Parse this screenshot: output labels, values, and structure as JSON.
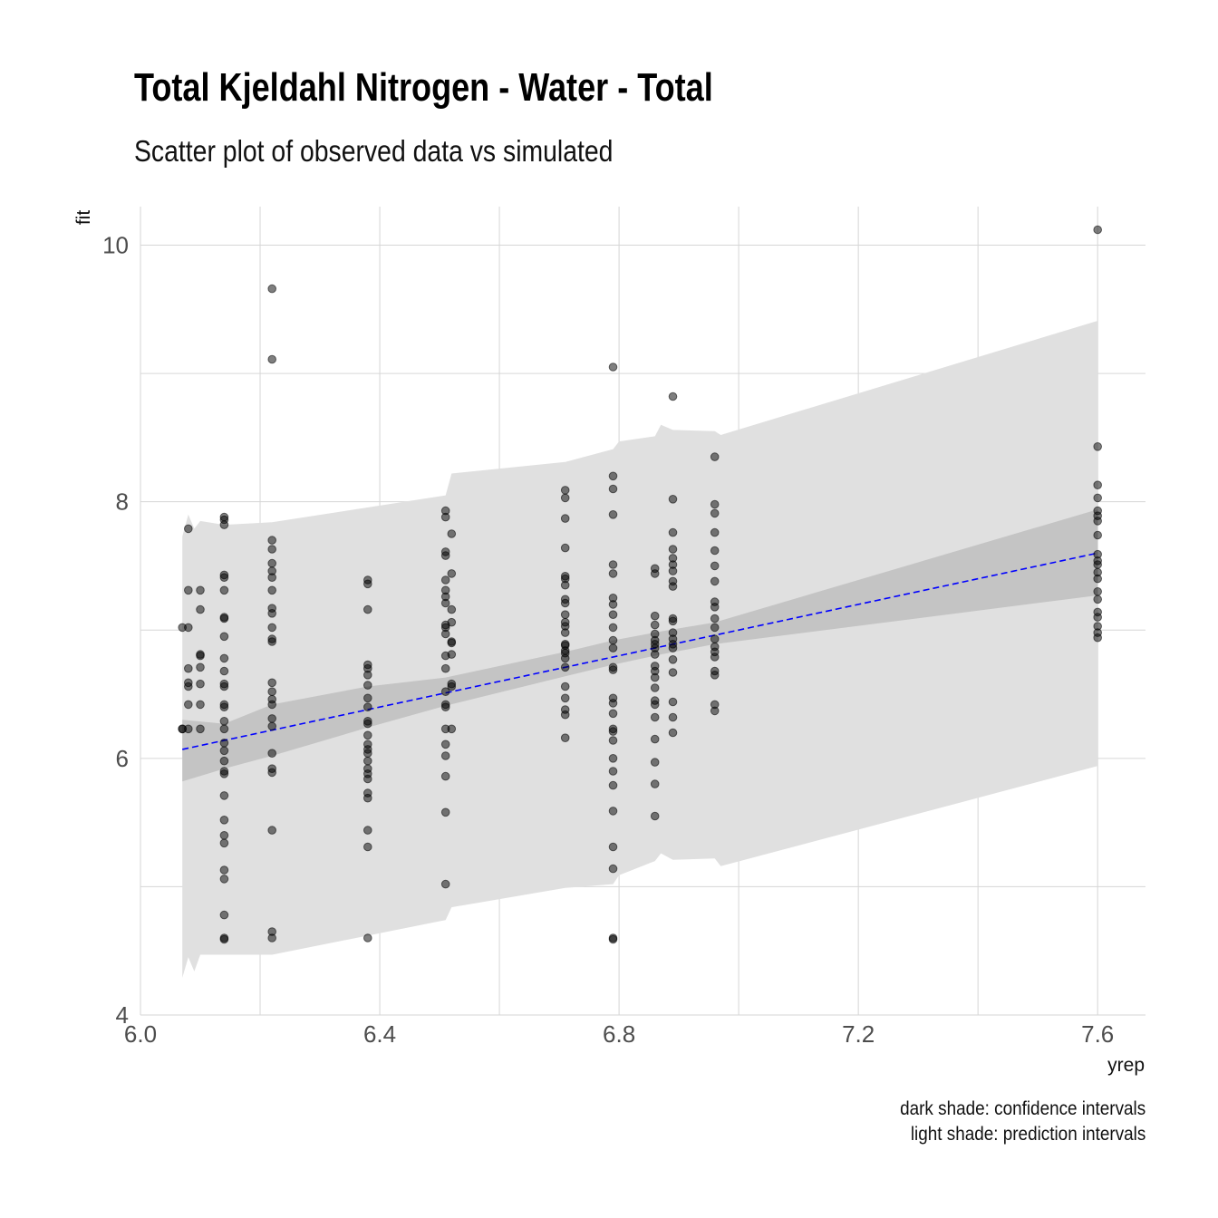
{
  "header": {
    "title": "Total Kjeldahl Nitrogen - Water - Total",
    "subtitle": "Scatter plot of observed data vs simulated"
  },
  "caption": {
    "line1": "dark shade: confidence intervals",
    "line2": "light shade: prediction intervals"
  },
  "chart_data": {
    "type": "scatter",
    "title": "Total Kjeldahl Nitrogen - Water - Total",
    "subtitle": "Scatter plot of observed data vs simulated",
    "xlabel": "yrep",
    "ylabel": "fit",
    "xlim": [
      6.0,
      7.68
    ],
    "ylim": [
      4.0,
      10.3
    ],
    "x_ticks": [
      "6.0",
      "6.4",
      "6.8",
      "7.2",
      "7.6"
    ],
    "y_ticks": [
      "4",
      "6",
      "8",
      "10"
    ],
    "grid": true,
    "colors": {
      "points": "#000000",
      "trend": "#0000ff",
      "confidence": "#c4c4c4",
      "prediction": "#e0e0e0"
    },
    "trend_line": {
      "x": [
        6.07,
        7.6
      ],
      "y": [
        6.07,
        7.6
      ],
      "style": "dashed"
    },
    "confidence_band": {
      "x": [
        6.07,
        6.14,
        6.22,
        6.38,
        6.51,
        6.71,
        6.79,
        6.87,
        6.96,
        7.6
      ],
      "lower": [
        5.82,
        5.92,
        6.02,
        6.24,
        6.41,
        6.64,
        6.73,
        6.81,
        6.89,
        7.27
      ],
      "upper": [
        6.3,
        6.27,
        6.42,
        6.56,
        6.63,
        6.83,
        6.92,
        6.99,
        7.06,
        7.94
      ]
    },
    "prediction_band": {
      "x": [
        6.07,
        6.08,
        6.09,
        6.1,
        6.14,
        6.22,
        6.51,
        6.52,
        6.71,
        6.79,
        6.8,
        6.86,
        6.87,
        6.89,
        6.96,
        6.97,
        7.6
      ],
      "lower": [
        4.29,
        4.45,
        4.34,
        4.47,
        4.47,
        4.47,
        4.74,
        4.84,
        4.99,
        5.02,
        5.09,
        5.2,
        5.26,
        5.21,
        5.22,
        5.16,
        5.94
      ],
      "upper": [
        7.73,
        7.9,
        7.79,
        7.85,
        7.82,
        7.84,
        8.05,
        8.22,
        8.31,
        8.41,
        8.47,
        8.51,
        8.6,
        8.56,
        8.55,
        8.52,
        9.41
      ]
    },
    "series": [
      {
        "x": 6.07,
        "y": [
          7.02,
          6.23,
          6.23
        ]
      },
      {
        "x": 6.08,
        "y": [
          7.79,
          7.31,
          7.02,
          6.7,
          6.59,
          6.56,
          6.42,
          6.23
        ]
      },
      {
        "x": 6.1,
        "y": [
          7.31,
          7.16,
          6.81,
          6.8,
          6.71,
          6.58,
          6.42,
          6.23
        ]
      },
      {
        "x": 6.14,
        "y": [
          7.88,
          7.86,
          7.82,
          7.43,
          7.41,
          7.31,
          7.1,
          7.09,
          6.95,
          6.78,
          6.68,
          6.58,
          6.56,
          6.42,
          6.4,
          6.29,
          6.23,
          6.12,
          6.06,
          5.98,
          5.9,
          5.88,
          5.71,
          5.52,
          5.4,
          5.34,
          5.13,
          5.06,
          4.78,
          4.6,
          4.59
        ]
      },
      {
        "x": 6.22,
        "y": [
          9.66,
          9.11,
          7.7,
          7.63,
          7.52,
          7.46,
          7.41,
          7.31,
          7.17,
          7.13,
          7.02,
          6.93,
          6.91,
          6.59,
          6.52,
          6.46,
          6.42,
          6.31,
          6.25,
          6.04,
          5.92,
          5.89,
          5.44,
          4.65,
          4.6
        ]
      },
      {
        "x": 6.38,
        "y": [
          7.39,
          7.36,
          7.16,
          6.73,
          6.7,
          6.65,
          6.57,
          6.47,
          6.4,
          6.29,
          6.27,
          6.18,
          6.11,
          6.07,
          6.04,
          5.98,
          5.92,
          5.88,
          5.84,
          5.73,
          5.69,
          5.44,
          5.31,
          4.6
        ]
      },
      {
        "x": 6.51,
        "y": [
          7.93,
          7.88,
          7.61,
          7.58,
          7.39,
          7.31,
          7.26,
          7.21,
          7.04,
          7.02,
          6.97,
          6.8,
          6.7,
          6.52,
          6.42,
          6.4,
          6.23,
          6.11,
          6.02,
          5.86,
          5.58,
          5.02
        ]
      },
      {
        "x": 6.52,
        "y": [
          7.75,
          7.44,
          7.16,
          7.06,
          6.91,
          6.9,
          6.81,
          6.58,
          6.56,
          6.23
        ]
      },
      {
        "x": 6.71,
        "y": [
          8.09,
          8.03,
          7.87,
          7.64,
          7.42,
          7.4,
          7.35,
          7.24,
          7.21,
          7.12,
          7.06,
          7.03,
          6.98,
          6.89,
          6.88,
          6.84,
          6.82,
          6.78,
          6.71,
          6.56,
          6.47,
          6.38,
          6.34,
          6.16
        ]
      },
      {
        "x": 6.79,
        "y": [
          9.05,
          8.2,
          8.1,
          7.9,
          7.51,
          7.44,
          7.25,
          7.2,
          7.12,
          7.02,
          6.92,
          6.86,
          6.71,
          6.69,
          6.47,
          6.43,
          6.35,
          6.23,
          6.21,
          6.14,
          6.0,
          5.9,
          5.79,
          5.59,
          5.31,
          5.14,
          4.6,
          4.59
        ]
      },
      {
        "x": 6.86,
        "y": [
          7.48,
          7.44,
          7.11,
          7.04,
          6.97,
          6.92,
          6.89,
          6.86,
          6.81,
          6.72,
          6.68,
          6.63,
          6.55,
          6.45,
          6.42,
          6.32,
          6.15,
          5.97,
          5.8,
          5.55
        ]
      },
      {
        "x": 6.89,
        "y": [
          8.82,
          8.02,
          7.76,
          7.63,
          7.56,
          7.51,
          7.46,
          7.38,
          7.34,
          7.09,
          7.07,
          6.98,
          6.93,
          6.89,
          6.86,
          6.77,
          6.67,
          6.44,
          6.32,
          6.2
        ]
      },
      {
        "x": 6.96,
        "y": [
          8.35,
          7.98,
          7.91,
          7.76,
          7.62,
          7.5,
          7.38,
          7.22,
          7.18,
          7.09,
          7.02,
          6.93,
          6.87,
          6.83,
          6.79,
          6.68,
          6.65,
          6.42,
          6.37
        ]
      },
      {
        "x": 7.6,
        "y": [
          10.12,
          8.43,
          8.13,
          8.03,
          7.93,
          7.89,
          7.85,
          7.74,
          7.59,
          7.54,
          7.51,
          7.45,
          7.4,
          7.3,
          7.24,
          7.14,
          7.1,
          7.03,
          6.98,
          6.94
        ]
      }
    ]
  }
}
